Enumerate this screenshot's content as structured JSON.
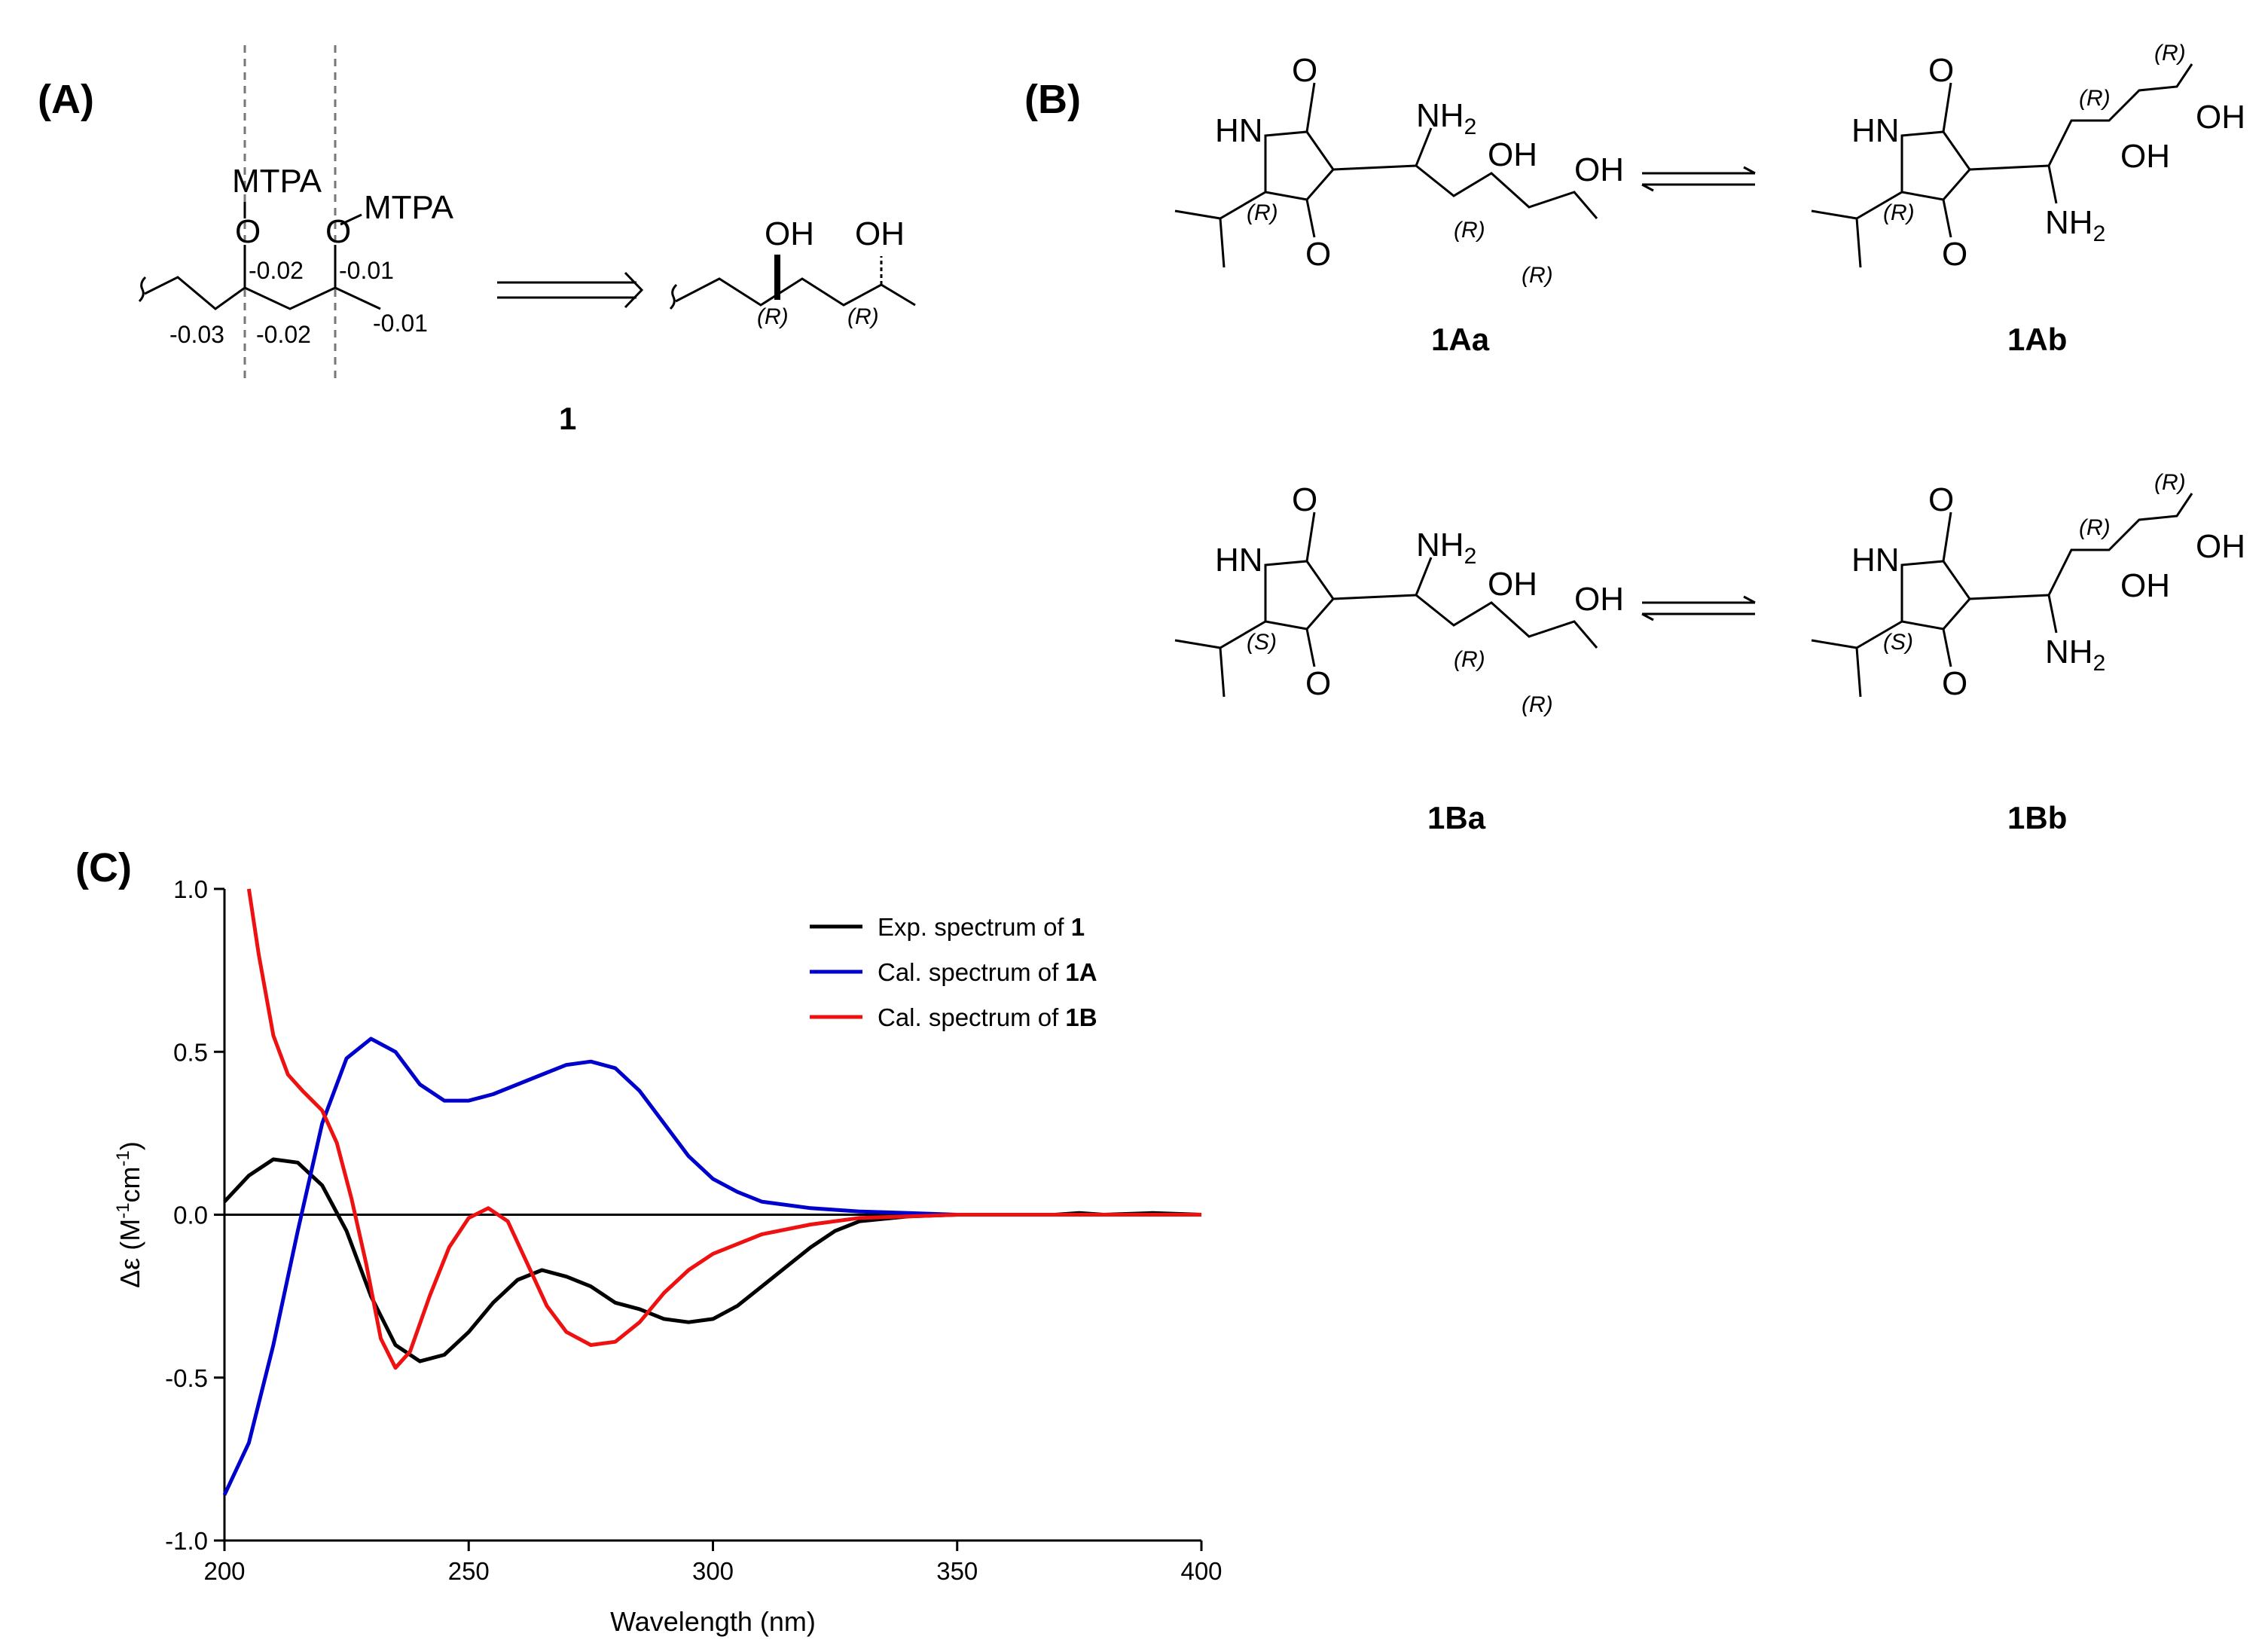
{
  "panels": {
    "a": "(A)",
    "b": "(B)",
    "c": "(C)"
  },
  "scheme_a": {
    "mtpa_left": "MTPA",
    "mtpa_right": "MTPA",
    "o_left": "O",
    "o_right": "O",
    "delta_values": [
      "-0.02",
      "-0.01",
      "-0.03",
      "-0.02",
      "-0.01"
    ],
    "oh1": "OH",
    "oh2": "OH",
    "stereo1": "(R)",
    "stereo2": "(R)",
    "compound": "1"
  },
  "scheme_b": {
    "hn": "HN",
    "o": "O",
    "nh2": "NH",
    "nh2_sub": "2",
    "oh": "OH",
    "r": "(R)",
    "s": "(S)",
    "labels": [
      "1Aa",
      "1Ab",
      "1Ba",
      "1Bb"
    ]
  },
  "chart_data": {
    "type": "line",
    "xlabel": "Wavelength (nm)",
    "ylabel_prefix": "Δε (M",
    "ylabel_sup1": "-1",
    "ylabel_mid": "cm",
    "ylabel_sup2": "-1",
    "ylabel_suffix": ")",
    "xlim": [
      200,
      400
    ],
    "ylim": [
      -1.0,
      1.0
    ],
    "xticks": [
      "200",
      "250",
      "300",
      "350",
      "400"
    ],
    "yticks": [
      "1.0",
      "0.5",
      "0.0",
      "-0.5",
      "-1.0"
    ],
    "legend_position": "top-right",
    "series": [
      {
        "legend_text": "Exp. spectrum of ",
        "legend_bold": "1",
        "color": "#000000",
        "points": [
          [
            200,
            0.04
          ],
          [
            205,
            0.12
          ],
          [
            210,
            0.17
          ],
          [
            215,
            0.16
          ],
          [
            220,
            0.09
          ],
          [
            225,
            -0.05
          ],
          [
            230,
            -0.25
          ],
          [
            235,
            -0.4
          ],
          [
            240,
            -0.45
          ],
          [
            245,
            -0.43
          ],
          [
            250,
            -0.36
          ],
          [
            255,
            -0.27
          ],
          [
            260,
            -0.2
          ],
          [
            265,
            -0.17
          ],
          [
            270,
            -0.19
          ],
          [
            275,
            -0.22
          ],
          [
            280,
            -0.27
          ],
          [
            285,
            -0.29
          ],
          [
            290,
            -0.32
          ],
          [
            295,
            -0.33
          ],
          [
            300,
            -0.32
          ],
          [
            305,
            -0.28
          ],
          [
            310,
            -0.22
          ],
          [
            315,
            -0.16
          ],
          [
            320,
            -0.1
          ],
          [
            325,
            -0.05
          ],
          [
            330,
            -0.02
          ],
          [
            340,
            -0.005
          ],
          [
            350,
            0.0
          ],
          [
            360,
            0.0
          ],
          [
            370,
            0.0
          ],
          [
            375,
            0.005
          ],
          [
            380,
            0.0
          ],
          [
            390,
            0.005
          ],
          [
            400,
            0.0
          ]
        ]
      },
      {
        "legend_text": "Cal. spectrum of ",
        "legend_bold": "1A",
        "color": "#0000cc",
        "points": [
          [
            200,
            -0.86
          ],
          [
            205,
            -0.7
          ],
          [
            210,
            -0.4
          ],
          [
            215,
            -0.05
          ],
          [
            220,
            0.28
          ],
          [
            225,
            0.48
          ],
          [
            230,
            0.54
          ],
          [
            235,
            0.5
          ],
          [
            240,
            0.4
          ],
          [
            245,
            0.35
          ],
          [
            250,
            0.35
          ],
          [
            255,
            0.37
          ],
          [
            260,
            0.4
          ],
          [
            265,
            0.43
          ],
          [
            270,
            0.46
          ],
          [
            275,
            0.47
          ],
          [
            280,
            0.45
          ],
          [
            285,
            0.38
          ],
          [
            290,
            0.28
          ],
          [
            295,
            0.18
          ],
          [
            300,
            0.11
          ],
          [
            305,
            0.07
          ],
          [
            310,
            0.04
          ],
          [
            320,
            0.02
          ],
          [
            330,
            0.01
          ],
          [
            340,
            0.005
          ],
          [
            350,
            0.0
          ],
          [
            360,
            0.0
          ],
          [
            400,
            0.0
          ]
        ]
      },
      {
        "legend_text": "Cal. spectrum of ",
        "legend_bold": "1B",
        "color": "#ee1111",
        "points": [
          [
            205,
            1.0
          ],
          [
            207,
            0.8
          ],
          [
            210,
            0.55
          ],
          [
            213,
            0.43
          ],
          [
            216,
            0.38
          ],
          [
            220,
            0.32
          ],
          [
            223,
            0.22
          ],
          [
            226,
            0.05
          ],
          [
            229,
            -0.15
          ],
          [
            232,
            -0.38
          ],
          [
            235,
            -0.47
          ],
          [
            238,
            -0.42
          ],
          [
            242,
            -0.25
          ],
          [
            246,
            -0.1
          ],
          [
            250,
            -0.01
          ],
          [
            254,
            0.02
          ],
          [
            258,
            -0.02
          ],
          [
            262,
            -0.15
          ],
          [
            266,
            -0.28
          ],
          [
            270,
            -0.36
          ],
          [
            275,
            -0.4
          ],
          [
            280,
            -0.39
          ],
          [
            285,
            -0.33
          ],
          [
            290,
            -0.24
          ],
          [
            295,
            -0.17
          ],
          [
            300,
            -0.12
          ],
          [
            310,
            -0.06
          ],
          [
            320,
            -0.03
          ],
          [
            330,
            -0.01
          ],
          [
            340,
            -0.005
          ],
          [
            350,
            0.0
          ],
          [
            400,
            0.0
          ]
        ]
      }
    ]
  }
}
